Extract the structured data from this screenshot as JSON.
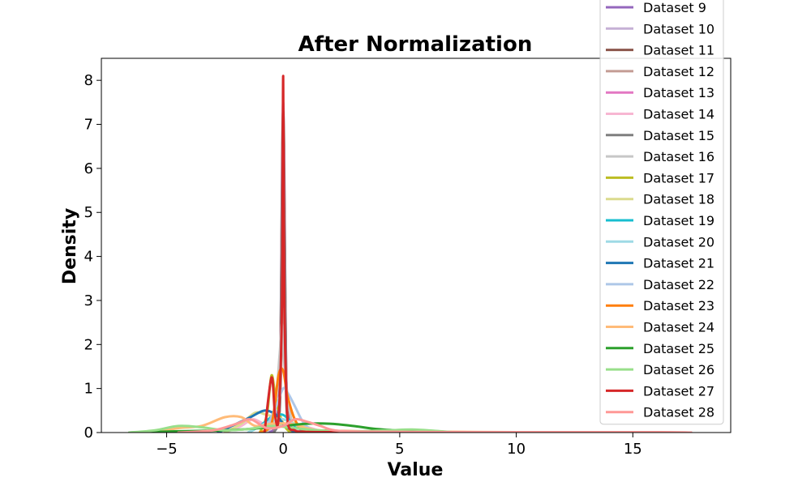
{
  "chart_data": {
    "type": "line",
    "title": "After Normalization",
    "xlabel": "Value",
    "ylabel": "Density",
    "xlim": [
      -7.8,
      19.2
    ],
    "ylim": [
      0,
      8.5
    ],
    "xticks": [
      -5,
      0,
      5,
      10,
      15
    ],
    "xtick_labels": [
      "−5",
      "0",
      "5",
      "10",
      "15"
    ],
    "yticks": [
      0,
      1,
      2,
      3,
      4,
      5,
      6,
      7,
      8
    ],
    "ytick_labels": [
      "0",
      "1",
      "2",
      "3",
      "4",
      "5",
      "6",
      "7",
      "8"
    ],
    "grid": false,
    "legend_position": "right, clipped at top",
    "series": [
      {
        "name": "Dataset 9",
        "color": "#9467bd",
        "x": [
          -0.6,
          -0.3,
          -0.1,
          0,
          0.1,
          0.3,
          0.6
        ],
        "y": [
          0,
          0.2,
          1.5,
          3.5,
          1.5,
          0.2,
          0
        ]
      },
      {
        "name": "Dataset 10",
        "color": "#c5b0d5",
        "x": [
          -0.4,
          -0.15,
          0,
          0.15,
          0.4
        ],
        "y": [
          0,
          0.8,
          7.5,
          0.8,
          0
        ]
      },
      {
        "name": "Dataset 11",
        "color": "#8c564b",
        "x": [
          -0.4,
          -0.15,
          0,
          0.15,
          0.4
        ],
        "y": [
          0,
          0.8,
          7.3,
          0.8,
          0
        ]
      },
      {
        "name": "Dataset 12",
        "color": "#c49c94",
        "x": [
          -0.4,
          -0.15,
          0,
          0.15,
          0.4
        ],
        "y": [
          0,
          0.5,
          2.8,
          0.5,
          0
        ]
      },
      {
        "name": "Dataset 13",
        "color": "#e377c2",
        "x": [
          -0.4,
          -0.15,
          0,
          0.15,
          0.4
        ],
        "y": [
          0,
          0.6,
          6.6,
          0.6,
          0
        ]
      },
      {
        "name": "Dataset 14",
        "color": "#f7b6d2",
        "x": [
          -2.5,
          -1.8,
          -1.3,
          -0.8,
          -0.3,
          0,
          0.5,
          1.2,
          1.8
        ],
        "y": [
          0,
          0.15,
          0.3,
          0.2,
          0.25,
          0.3,
          0.2,
          0.1,
          0
        ]
      },
      {
        "name": "Dataset 15",
        "color": "#7f7f7f",
        "x": [
          -0.4,
          -0.15,
          0,
          0.15,
          0.4
        ],
        "y": [
          0,
          0.5,
          6.3,
          0.5,
          0
        ]
      },
      {
        "name": "Dataset 16",
        "color": "#c7c7c7",
        "x": [
          -0.8,
          -0.4,
          -0.15,
          -0.05,
          0.1,
          0.4,
          0.8
        ],
        "y": [
          0,
          0.3,
          1.8,
          2.45,
          1.2,
          0.2,
          0
        ]
      },
      {
        "name": "Dataset 17",
        "color": "#bcbd22",
        "x": [
          -1.0,
          -0.7,
          -0.5,
          -0.3,
          0,
          0.3
        ],
        "y": [
          0,
          0.4,
          1.3,
          0.7,
          0.2,
          0
        ]
      },
      {
        "name": "Dataset 18",
        "color": "#dbdb8d",
        "x": [
          -2.5,
          -1.8,
          -1.2,
          -0.7,
          0,
          0.8,
          1.6
        ],
        "y": [
          0,
          0.2,
          0.45,
          0.4,
          0.3,
          0.15,
          0
        ]
      },
      {
        "name": "Dataset 19",
        "color": "#17becf",
        "x": [
          -1.5,
          -1.0,
          -0.5,
          0,
          0.5,
          1.0
        ],
        "y": [
          0,
          0.15,
          0.35,
          0.4,
          0.15,
          0
        ]
      },
      {
        "name": "Dataset 20",
        "color": "#9edae5",
        "x": [
          -1.5,
          -0.8,
          0,
          0.8,
          1.5
        ],
        "y": [
          0,
          0.2,
          0.3,
          0.1,
          0
        ]
      },
      {
        "name": "Dataset 21",
        "color": "#1f77b4",
        "x": [
          -2.8,
          -2.0,
          -1.4,
          -0.8,
          -0.3,
          0,
          0.5
        ],
        "y": [
          0,
          0.2,
          0.35,
          0.5,
          0.4,
          0.2,
          0
        ]
      },
      {
        "name": "Dataset 22",
        "color": "#aec7e8",
        "x": [
          -0.8,
          -0.3,
          0,
          0.2,
          0.5,
          0.9,
          1.4
        ],
        "y": [
          0,
          0.6,
          1.0,
          0.9,
          0.6,
          0.2,
          0
        ]
      },
      {
        "name": "Dataset 23",
        "color": "#ff7f0e",
        "x": [
          -1.0,
          -0.5,
          -0.2,
          0,
          0.2,
          0.6,
          1.2,
          5,
          10,
          15,
          16.5
        ],
        "y": [
          0,
          0.2,
          1.3,
          1.4,
          0.8,
          0.2,
          0.06,
          0.02,
          0.01,
          0.01,
          0
        ]
      },
      {
        "name": "Dataset 24",
        "color": "#ffbb78",
        "x": [
          -5.5,
          -4.5,
          -3.5,
          -2.5,
          -1.8,
          -1.2,
          -0.5,
          0.3,
          1.0,
          1.8
        ],
        "y": [
          0,
          0.1,
          0.15,
          0.35,
          0.35,
          0.15,
          0.2,
          0.2,
          0.1,
          0
        ]
      },
      {
        "name": "Dataset 25",
        "color": "#2ca02c",
        "x": [
          -6.6,
          -4.5,
          -2.5,
          -1.0,
          0,
          1.0,
          2.0,
          3.0,
          4.0,
          5.5,
          7.0
        ],
        "y": [
          0,
          0.03,
          0.05,
          0.1,
          0.15,
          0.2,
          0.2,
          0.15,
          0.08,
          0.03,
          0
        ]
      },
      {
        "name": "Dataset 26",
        "color": "#98df8a",
        "x": [
          -6.6,
          -5.5,
          -4.5,
          -3.5,
          -2.5,
          -1.5,
          -0.5,
          0.5,
          1.5,
          3.0,
          4.5,
          5.5,
          6.5,
          7.5
        ],
        "y": [
          0,
          0.05,
          0.15,
          0.12,
          0.05,
          0.08,
          0.15,
          0.1,
          0.05,
          0.03,
          0.05,
          0.07,
          0.04,
          0
        ]
      },
      {
        "name": "Dataset 27",
        "color": "#d62728",
        "x": [
          -0.8,
          -0.5,
          -0.35,
          -0.2,
          -0.05,
          0,
          0.05,
          0.2,
          0.5,
          0.8,
          2,
          8,
          12,
          16,
          17.5
        ],
        "y": [
          0,
          1.25,
          0.4,
          0.3,
          3.0,
          8.1,
          3.0,
          0.2,
          0.05,
          0.02,
          0.01,
          0.005,
          0.003,
          0.003,
          0
        ]
      },
      {
        "name": "Dataset 28",
        "color": "#ff9896",
        "x": [
          -4.5,
          -3.0,
          -2.0,
          -1.4,
          -0.7,
          0,
          0.5,
          1.0,
          1.6,
          2.2,
          3.5,
          8,
          13,
          16,
          17.5
        ],
        "y": [
          0,
          0.05,
          0.2,
          0.3,
          0.1,
          0.15,
          0.3,
          0.25,
          0.15,
          0.05,
          0.02,
          0.01,
          0.01,
          0.01,
          0
        ]
      }
    ]
  }
}
